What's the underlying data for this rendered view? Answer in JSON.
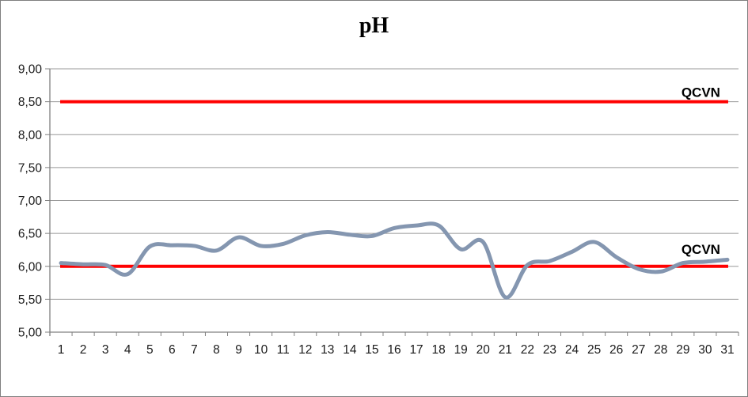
{
  "window": {
    "background": "#FFFFFF",
    "border_color": "#7F7F7F"
  },
  "chart_data": {
    "type": "line",
    "title": "pH",
    "smooth": true,
    "grid": true,
    "legend": "none",
    "ylim": [
      5.0,
      9.0
    ],
    "ytick_step": 0.5,
    "ytick_labels": [
      "5,00",
      "5,50",
      "6,00",
      "6,50",
      "7,00",
      "7,50",
      "8,00",
      "8,50",
      "9,00"
    ],
    "x_labels": [
      "1",
      "2",
      "3",
      "4",
      "5",
      "6",
      "7",
      "8",
      "9",
      "10",
      "11",
      "12",
      "13",
      "14",
      "15",
      "16",
      "17",
      "18",
      "19",
      "20",
      "21",
      "22",
      "23",
      "24",
      "25",
      "26",
      "27",
      "28",
      "29",
      "30",
      "31"
    ],
    "series": [
      {
        "name": "pH",
        "color": "#8496B0",
        "values": [
          6.05,
          6.03,
          6.02,
          5.88,
          6.3,
          6.32,
          6.31,
          6.24,
          6.44,
          6.31,
          6.34,
          6.47,
          6.52,
          6.48,
          6.46,
          6.58,
          6.62,
          6.62,
          6.26,
          6.37,
          5.53,
          6.02,
          6.08,
          6.22,
          6.37,
          6.14,
          5.96,
          5.92,
          6.05,
          6.07,
          6.1
        ]
      }
    ],
    "limit_lines": [
      {
        "label": "QCVN",
        "value": 8.5,
        "color": "#FF0000"
      },
      {
        "label": "QCVN",
        "value": 6.0,
        "color": "#FF0000"
      }
    ],
    "axis_color": "#808080",
    "grid_color": "#989898",
    "label_color": "#1A1A1A",
    "annotation_color": "#000000"
  }
}
